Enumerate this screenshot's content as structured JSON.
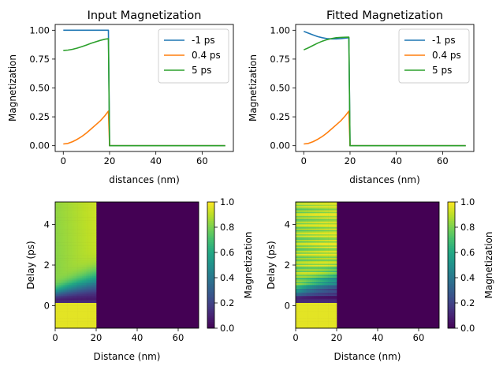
{
  "chart_data": [
    {
      "type": "line",
      "title": "Input Magnetization",
      "xlabel": "distances (nm)",
      "ylabel": "Magnetization",
      "xlim": [
        -3.5,
        73.5
      ],
      "ylim": [
        -0.05,
        1.05
      ],
      "xticks": [
        "0",
        "20",
        "40",
        "60"
      ],
      "yticks": [
        "0.00",
        "0.25",
        "0.50",
        "0.75",
        "1.00"
      ],
      "legend": "top-right",
      "series": [
        {
          "name": "-1 ps",
          "color": "#1f77b4",
          "x": [
            0,
            19.5,
            20,
            70
          ],
          "y": [
            1.0,
            1.0,
            0.0,
            0.0
          ]
        },
        {
          "name": "0.4 ps",
          "color": "#ff7f0e",
          "x": [
            0,
            2,
            4,
            6,
            8,
            10,
            12,
            14,
            16,
            18,
            19.5,
            20,
            70
          ],
          "y": [
            0.015,
            0.02,
            0.035,
            0.055,
            0.08,
            0.11,
            0.145,
            0.18,
            0.215,
            0.26,
            0.3,
            0.0,
            0.0
          ]
        },
        {
          "name": "5 ps",
          "color": "#2ca02c",
          "x": [
            0,
            2,
            4,
            6,
            8,
            10,
            12,
            14,
            16,
            18,
            19.5,
            20,
            70
          ],
          "y": [
            0.825,
            0.828,
            0.835,
            0.845,
            0.858,
            0.872,
            0.887,
            0.9,
            0.912,
            0.922,
            0.926,
            0.0,
            0.0
          ]
        }
      ]
    },
    {
      "type": "line",
      "title": "Fitted Magnetization",
      "xlabel": "distances (nm)",
      "ylabel": "Magnetization",
      "xlim": [
        -3.5,
        73.5
      ],
      "ylim": [
        -0.05,
        1.05
      ],
      "xticks": [
        "0",
        "20",
        "40",
        "60"
      ],
      "yticks": [
        "0.00",
        "0.25",
        "0.50",
        "0.75",
        "1.00"
      ],
      "legend": "top-right",
      "series": [
        {
          "name": "-1 ps",
          "color": "#1f77b4",
          "x": [
            0,
            2,
            4,
            6,
            8,
            10,
            12,
            14,
            16,
            18,
            19.5,
            20,
            70
          ],
          "y": [
            0.99,
            0.975,
            0.96,
            0.945,
            0.935,
            0.928,
            0.925,
            0.925,
            0.928,
            0.932,
            0.935,
            0.0,
            0.0
          ]
        },
        {
          "name": "0.4 ps",
          "color": "#ff7f0e",
          "x": [
            0,
            2,
            4,
            6,
            8,
            10,
            12,
            14,
            16,
            18,
            19.5,
            20,
            70
          ],
          "y": [
            0.015,
            0.02,
            0.035,
            0.055,
            0.08,
            0.11,
            0.145,
            0.18,
            0.215,
            0.26,
            0.3,
            0.0,
            0.0
          ]
        },
        {
          "name": "5 ps",
          "color": "#2ca02c",
          "x": [
            0,
            2,
            4,
            6,
            8,
            10,
            12,
            14,
            16,
            18,
            19.5,
            20,
            70
          ],
          "y": [
            0.83,
            0.848,
            0.868,
            0.888,
            0.905,
            0.918,
            0.928,
            0.935,
            0.938,
            0.939,
            0.94,
            0.0,
            0.0
          ]
        }
      ]
    },
    {
      "type": "heatmap",
      "xlabel": "Distance (nm)",
      "ylabel": "Delay (ps)",
      "xlim": [
        0,
        70
      ],
      "ylim": [
        -1.1,
        5.1
      ],
      "xticks": [
        "0",
        "20",
        "40",
        "60"
      ],
      "yticks": [
        "0",
        "2",
        "4"
      ],
      "colormap": "viridis",
      "value_range": [
        0.0,
        1.0
      ],
      "colorbar_label": "Magnetization",
      "colorbar_ticks": [
        "0.0",
        "0.2",
        "0.4",
        "0.6",
        "0.8",
        "1.0"
      ],
      "layer_boundary_nm": 20,
      "fitted": false
    },
    {
      "type": "heatmap",
      "xlabel": "Distance (nm)",
      "ylabel": "Delay (ps)",
      "xlim": [
        0,
        70
      ],
      "ylim": [
        -1.1,
        5.1
      ],
      "xticks": [
        "0",
        "20",
        "40",
        "60"
      ],
      "yticks": [
        "0",
        "2",
        "4"
      ],
      "colormap": "viridis",
      "value_range": [
        0.0,
        1.0
      ],
      "colorbar_label": "Magnetization",
      "colorbar_ticks": [
        "0.0",
        "0.2",
        "0.4",
        "0.6",
        "0.8",
        "1.0"
      ],
      "layer_boundary_nm": 20,
      "fitted": true
    }
  ]
}
